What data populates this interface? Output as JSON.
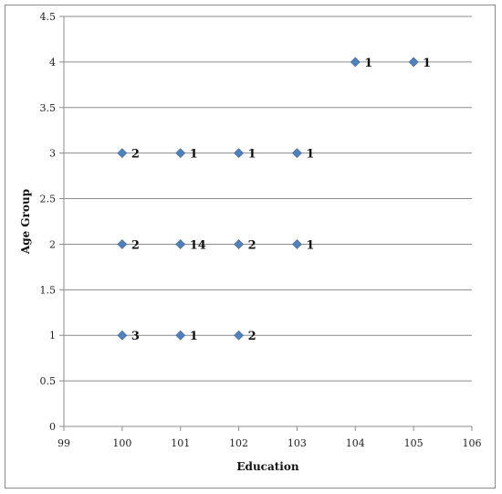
{
  "chart_data": {
    "type": "scatter",
    "title": "",
    "xlabel": "Education",
    "ylabel": "Age Group",
    "xlim": [
      99,
      106
    ],
    "ylim": [
      0,
      4.5
    ],
    "x_ticks": [
      "99",
      "100",
      "101",
      "102",
      "103",
      "104",
      "105",
      "106"
    ],
    "y_ticks": [
      "0",
      "0.5",
      "1",
      "1.5",
      "2",
      "2.5",
      "3",
      "3.5",
      "4",
      "4.5"
    ],
    "grid": "horizontal major gridlines",
    "legend": "none",
    "marker_color": "#4f81bd",
    "points": [
      {
        "x": 100,
        "y": 1,
        "label": "3"
      },
      {
        "x": 101,
        "y": 1,
        "label": "1"
      },
      {
        "x": 102,
        "y": 1,
        "label": "2"
      },
      {
        "x": 100,
        "y": 2,
        "label": "2"
      },
      {
        "x": 101,
        "y": 2,
        "label": "14"
      },
      {
        "x": 102,
        "y": 2,
        "label": "2"
      },
      {
        "x": 103,
        "y": 2,
        "label": "1"
      },
      {
        "x": 100,
        "y": 3,
        "label": "2"
      },
      {
        "x": 101,
        "y": 3,
        "label": "1"
      },
      {
        "x": 102,
        "y": 3,
        "label": "1"
      },
      {
        "x": 103,
        "y": 3,
        "label": "1"
      },
      {
        "x": 104,
        "y": 4,
        "label": "1"
      },
      {
        "x": 105,
        "y": 4,
        "label": "1"
      }
    ]
  }
}
